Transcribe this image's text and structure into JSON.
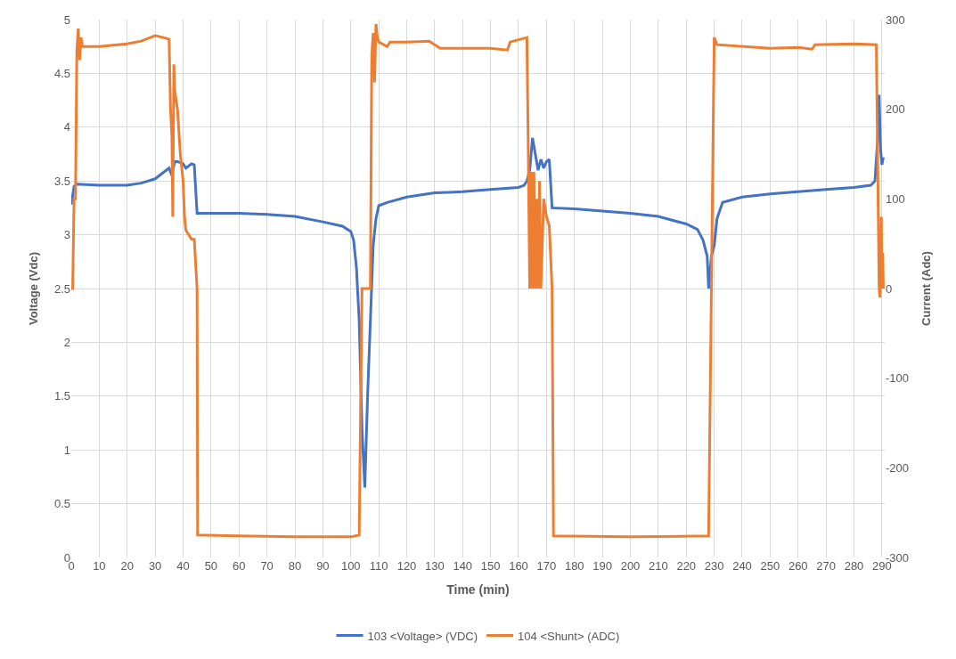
{
  "chart_data": {
    "type": "line",
    "xlabel": "Time (min)",
    "ylabel": "Voltage (Vdc)",
    "y2label": "Current (Adc)",
    "xlim": [
      0,
      291
    ],
    "xticks": [
      0,
      10,
      20,
      30,
      40,
      50,
      60,
      70,
      80,
      90,
      100,
      110,
      120,
      130,
      140,
      150,
      160,
      170,
      180,
      190,
      200,
      210,
      220,
      230,
      240,
      250,
      260,
      270,
      280,
      290
    ],
    "ylim": [
      0,
      5
    ],
    "yticks": [
      0,
      0.5,
      1,
      1.5,
      2,
      2.5,
      3,
      3.5,
      4,
      4.5,
      5
    ],
    "y2lim": [
      -300,
      300
    ],
    "y2ticks": [
      -300,
      -200,
      -100,
      0,
      100,
      200,
      300
    ],
    "grid": true,
    "legend": "bottom",
    "line_style": "solid",
    "marker": "none",
    "series": [
      {
        "name": "103 <Voltage> (VDC)",
        "color": "#4472c4",
        "axis": "y",
        "x": [
          0,
          1,
          2,
          10,
          20,
          25,
          30,
          33,
          35,
          36,
          37,
          38,
          40,
          41,
          43,
          44,
          45,
          50,
          60,
          70,
          80,
          90,
          97,
          100,
          101,
          102,
          103,
          104,
          105,
          106,
          108,
          109,
          110,
          113,
          120,
          130,
          140,
          150,
          160,
          162,
          163,
          164,
          165,
          166,
          167,
          168,
          169,
          170,
          171,
          172,
          180,
          190,
          200,
          210,
          220,
          224,
          226,
          227.5,
          228,
          229,
          230,
          231,
          233,
          240,
          250,
          260,
          270,
          280,
          286,
          287.5,
          288.5,
          289,
          289.5,
          290,
          290.5
        ],
        "values": [
          3.28,
          3.45,
          3.47,
          3.46,
          3.46,
          3.48,
          3.52,
          3.58,
          3.62,
          3.55,
          3.68,
          3.68,
          3.66,
          3.62,
          3.66,
          3.65,
          3.2,
          3.2,
          3.2,
          3.19,
          3.17,
          3.12,
          3.08,
          3.03,
          2.95,
          2.7,
          2.2,
          1.2,
          0.65,
          1.5,
          2.9,
          3.15,
          3.27,
          3.3,
          3.35,
          3.39,
          3.4,
          3.42,
          3.44,
          3.46,
          3.5,
          3.6,
          3.9,
          3.75,
          3.6,
          3.7,
          3.62,
          3.68,
          3.7,
          3.25,
          3.24,
          3.22,
          3.2,
          3.17,
          3.1,
          3.05,
          2.95,
          2.8,
          2.5,
          2.8,
          2.9,
          3.15,
          3.3,
          3.35,
          3.38,
          3.4,
          3.42,
          3.44,
          3.46,
          3.5,
          3.9,
          4.3,
          3.8,
          3.65,
          3.72
        ]
      },
      {
        "name": "104 <Shunt> (ADC)",
        "color": "#ed7d31",
        "axis": "y2",
        "x": [
          0,
          0.5,
          1,
          1.5,
          2,
          2.5,
          3,
          3.5,
          4,
          10,
          20,
          25,
          30,
          33,
          35,
          35.5,
          36,
          36.3,
          36.7,
          37,
          38,
          39,
          40,
          40.5,
          41,
          43,
          44,
          45,
          45.2,
          60,
          80,
          100,
          103,
          104,
          106,
          107,
          107.5,
          108,
          108.5,
          109,
          109.5,
          110,
          113,
          114,
          120,
          128,
          130,
          132,
          140,
          150,
          156,
          157,
          163,
          163.5,
          164,
          164.5,
          165,
          165.5,
          166,
          166.5,
          167,
          167.5,
          168,
          169,
          170,
          171,
          172,
          172.5,
          200,
          228,
          229,
          230,
          231,
          250,
          260,
          265,
          266,
          280,
          288,
          289,
          289.3,
          289.8,
          290,
          290.3,
          290.5
        ],
        "values": [
          0,
          0,
          100,
          100,
          265,
          290,
          255,
          280,
          270,
          270,
          273,
          276,
          282,
          280,
          278,
          200,
          170,
          80,
          250,
          220,
          200,
          150,
          120,
          80,
          65,
          55,
          55,
          0,
          -275,
          -276,
          -277,
          -277,
          -275,
          0,
          0,
          0,
          260,
          285,
          230,
          295,
          280,
          275,
          270,
          275,
          275,
          276,
          272,
          268,
          268,
          268,
          266,
          275,
          280,
          150,
          0,
          130,
          0,
          130,
          0,
          100,
          0,
          120,
          0,
          100,
          80,
          70,
          0,
          -276,
          -277,
          -276,
          0,
          280,
          272,
          268,
          269,
          267,
          272,
          273,
          272,
          0,
          -10,
          80,
          0,
          40,
          0
        ]
      }
    ]
  }
}
